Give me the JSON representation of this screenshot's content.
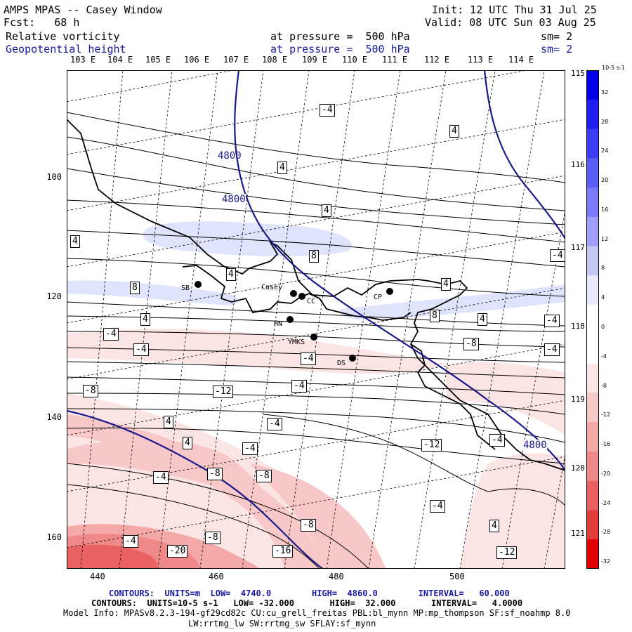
{
  "header": {
    "model_title": "AMPS MPAS -- Casey Window",
    "init": "Init: 12 UTC Thu 31 Jul 25",
    "forecast": "Fcst:   68 h",
    "valid": "Valid: 08 UTC Sun 03 Aug 25",
    "field1": {
      "name": "Relative vorticity",
      "pressure": "at pressure =  500 hPa",
      "smooth": "sm= 2"
    },
    "field2": {
      "name": "Geopotential height",
      "pressure": "at pressure =  500 hPa",
      "smooth": "sm= 2"
    }
  },
  "map": {
    "lon_labels_top": [
      "103 E",
      "104 E",
      "105 E",
      "106 E",
      "107 E",
      "108 E",
      "109 E",
      "110 E",
      "111 E",
      "112 E",
      "113 E",
      "114 E"
    ],
    "lon_labels_right": [
      "115 E",
      "116 E",
      "117 E",
      "118 E",
      "119 E",
      "120 E",
      "121 E"
    ],
    "y_ticks": [
      "100",
      "120",
      "140",
      "160"
    ],
    "x_ticks": [
      "440",
      "460",
      "480",
      "500"
    ],
    "stations": [
      {
        "name": "SB"
      },
      {
        "name": "Casey"
      },
      {
        "name": "CC"
      },
      {
        "name": "CP"
      },
      {
        "name": "HN"
      },
      {
        "name": "YMKS"
      },
      {
        "name": "DS"
      }
    ],
    "height_contour_labels": [
      "4800",
      "4800",
      "4800"
    ],
    "vorticity_labels": [
      "-4",
      "4",
      "4",
      "4",
      "4",
      "8",
      "4",
      "8",
      "4",
      "-4",
      "4",
      "8",
      "4",
      "-4",
      "-4",
      "-4",
      "-4",
      "-8",
      "-4",
      "-8",
      "-4",
      "4",
      "4",
      "-4",
      "-8",
      "-4",
      "-8",
      "-4",
      "-8",
      "4",
      "-12",
      "-4",
      "-4",
      "-8",
      "-20",
      "-16",
      "-12",
      "-4",
      "-12"
    ],
    "colors": {
      "height": "#1a1a8c",
      "vorticity": "#000000",
      "coast": "#000000"
    }
  },
  "colorbar": {
    "units": "10-5 s-1",
    "levels": [
      "32",
      "28",
      "24",
      "20",
      "16",
      "12",
      "8",
      "4",
      "0",
      "-4",
      "-8",
      "-12",
      "-16",
      "-20",
      "-24",
      "-28",
      "-32"
    ],
    "colors": [
      "#0000e6",
      "#1f1ff0",
      "#3d3df5",
      "#5c5cf7",
      "#7b7bf9",
      "#a0a0fa",
      "#c2c8f2",
      "#e8ecfa",
      "#ffffff",
      "#ffffff",
      "#fbe4e4",
      "#f8c8c8",
      "#f4a8a8",
      "#ef8888",
      "#e86262",
      "#e23c3c",
      "#e00000"
    ]
  },
  "footer": {
    "line1": "CONTOURS:  UNITS=m  LOW=  4740.0        HIGH=  4860.0        INTERVAL=   60.000",
    "line2": "CONTOURS:  UNITS=10-5 s-1   LOW= -32.000       HIGH=  32.000       INTERVAL=   4.0000",
    "line3": "Model Info: MPASv8.2.3-194-gf29cd82c CU:cu_grell_freitas PBL:bl_mynn MP:mp_thompson SF:sf_noahmp 8.0",
    "line4": "LW:rrtmg_lw SW:rrtmg_sw SFLAY:sf_mynn"
  }
}
